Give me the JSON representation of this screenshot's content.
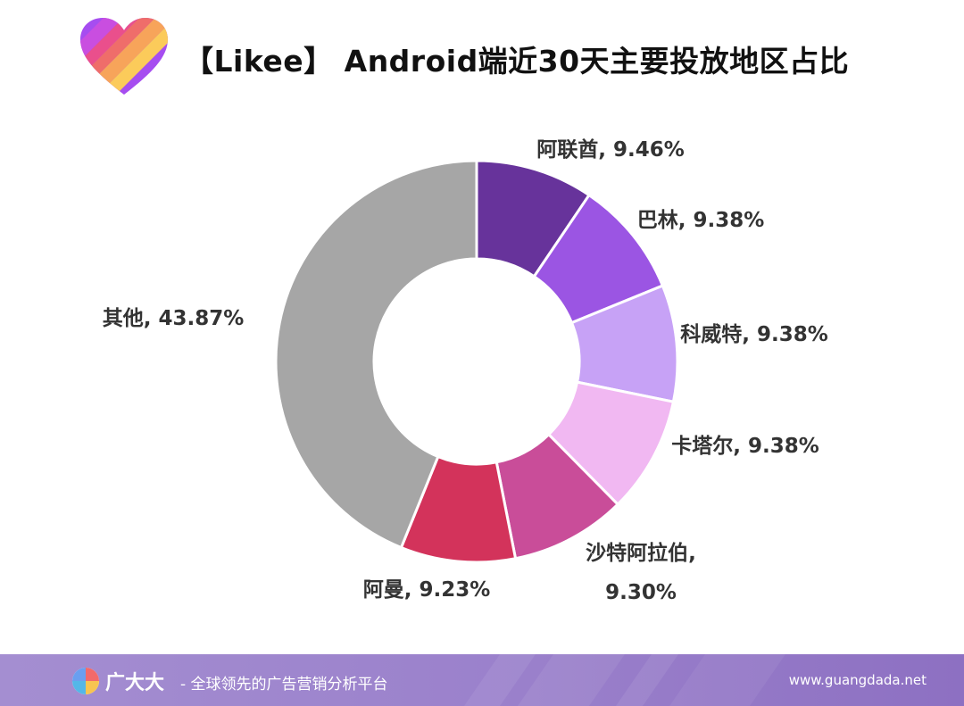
{
  "header": {
    "title": "【Likee】 Android端近30天主要投放地区占比"
  },
  "footer": {
    "brand": "广大大",
    "slogan": "- 全球领先的广告营销分析平台",
    "url": "www.guangdada.net"
  },
  "chart_data": {
    "type": "pie",
    "variant": "donut",
    "title": "【Likee】 Android端近30天主要投放地区占比",
    "unit": "%",
    "start_angle_deg": 0,
    "direction": "clockwise",
    "slices": [
      {
        "label": "阿联酋",
        "value": 9.46,
        "display": "阿联酋, 9.46%",
        "color": "#67339b"
      },
      {
        "label": "巴林",
        "value": 9.38,
        "display": "巴林, 9.38%",
        "color": "#9b55e3"
      },
      {
        "label": "科威特",
        "value": 9.38,
        "display": "科威特, 9.38%",
        "color": "#c7a2f6"
      },
      {
        "label": "卡塔尔",
        "value": 9.38,
        "display": "卡塔尔, 9.38%",
        "color": "#f1b8f2"
      },
      {
        "label": "沙特阿拉伯",
        "value": 9.3,
        "display": "沙特阿拉伯, 9.30%",
        "lines": [
          "沙特阿拉伯,",
          "9.30%"
        ],
        "color": "#c94d99"
      },
      {
        "label": "阿曼",
        "value": 9.23,
        "display": "阿曼, 9.23%",
        "color": "#d3335b"
      },
      {
        "label": "其他",
        "value": 43.87,
        "display": "其他, 43.87%",
        "color": "#a6a6a6"
      }
    ],
    "legend": "none",
    "data_labels": "outside"
  },
  "colors": {
    "footer_bg": "#9a80cb",
    "title_text": "#111111",
    "label_text": "#333333"
  },
  "icons": {
    "brand_logo": "likee-heart-icon",
    "footer_logo": "guangdada-logo-icon"
  }
}
